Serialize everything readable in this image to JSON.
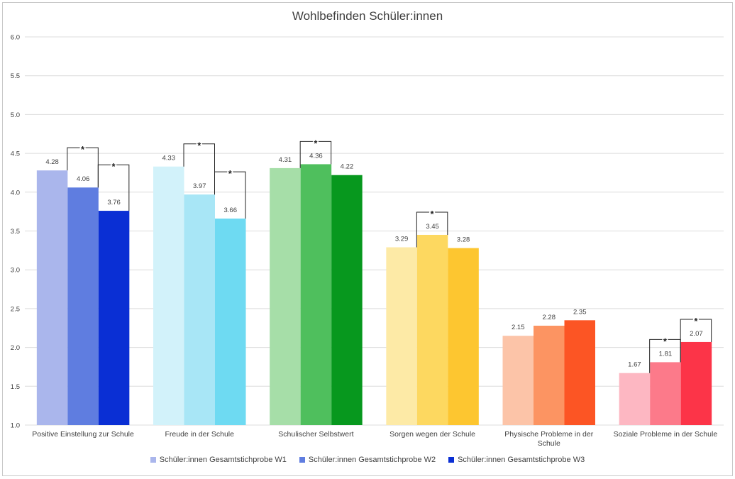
{
  "chart_data": {
    "type": "bar",
    "title": "Wohlbefinden Schüler:innen",
    "xlabel": "",
    "ylabel": "",
    "ylim": [
      1.0,
      6.0
    ],
    "yticks": [
      "1.0",
      "1.5",
      "2.0",
      "2.5",
      "3.0",
      "3.5",
      "4.0",
      "4.5",
      "5.0",
      "5.5",
      "6.0"
    ],
    "grid": true,
    "legend_position": "bottom",
    "series_names": [
      "Schüler:innen Gesamtstichprobe W1",
      "Schüler:innen Gesamtstichprobe W2",
      "Schüler:innen Gesamtstichprobe W3"
    ],
    "legend_colors": [
      "#aab6ec",
      "#5f7de0",
      "#0a2fd4"
    ],
    "groups": [
      {
        "label": [
          "Positive Einstellung zur Schule"
        ],
        "values": [
          4.28,
          4.06,
          3.76
        ],
        "labels": [
          "4.28",
          "4.06",
          "3.76"
        ],
        "colors": [
          "#aab6ec",
          "#5f7de0",
          "#0a2fd4"
        ],
        "significance": [
          [
            0,
            1
          ],
          [
            1,
            2
          ]
        ]
      },
      {
        "label": [
          "Freude in der Schule"
        ],
        "values": [
          4.33,
          3.97,
          3.66
        ],
        "labels": [
          "4.33",
          "3.97",
          "3.66"
        ],
        "colors": [
          "#d2f2fa",
          "#a8e6f6",
          "#6edaf2"
        ],
        "significance": [
          [
            0,
            1
          ],
          [
            1,
            2
          ]
        ]
      },
      {
        "label": [
          "Schulischer Selbstwert"
        ],
        "values": [
          4.31,
          4.36,
          4.22
        ],
        "labels": [
          "4.31",
          "4.36",
          "4.22"
        ],
        "colors": [
          "#a6dea8",
          "#4fbf5d",
          "#07981e"
        ],
        "significance": [
          [
            0,
            1
          ]
        ]
      },
      {
        "label": [
          "Sorgen wegen der Schule"
        ],
        "values": [
          3.29,
          3.45,
          3.28
        ],
        "labels": [
          "3.29",
          "3.45",
          "3.28"
        ],
        "colors": [
          "#fdeaa6",
          "#fdd860",
          "#fdc630"
        ],
        "significance": [
          [
            0,
            1
          ]
        ]
      },
      {
        "label": [
          "Physische Probleme in der",
          "Schule"
        ],
        "values": [
          2.15,
          2.28,
          2.35
        ],
        "labels": [
          "2.15",
          "2.28",
          "2.35"
        ],
        "colors": [
          "#fcc4a8",
          "#fc9462",
          "#fc5524"
        ],
        "significance": []
      },
      {
        "label": [
          "Soziale Probleme in der Schule"
        ],
        "values": [
          1.67,
          1.81,
          2.07
        ],
        "labels": [
          "1.67",
          "1.81",
          "2.07"
        ],
        "colors": [
          "#fdb7c2",
          "#fc7a8a",
          "#fc3448"
        ],
        "significance": [
          [
            0,
            1
          ],
          [
            1,
            2
          ]
        ]
      }
    ],
    "significance_marker": "*"
  }
}
